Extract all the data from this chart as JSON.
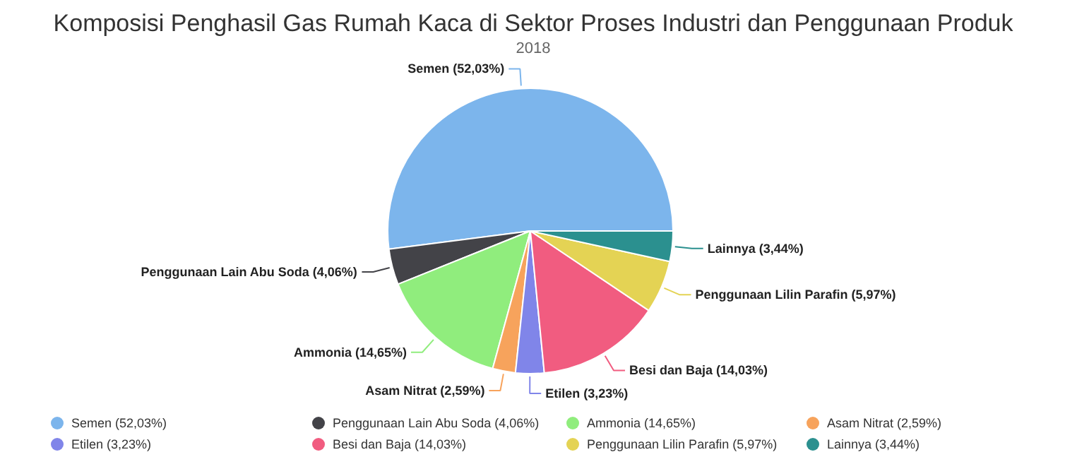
{
  "chart_data": {
    "type": "pie",
    "title": "Komposisi Penghasil Gas Rumah Kaca di Sektor Proses Industri dan Penggunaan Produk",
    "subtitle": "2018",
    "categories": [
      "Semen (52,03%)",
      "Penggunaan Lain Abu Soda (4,06%)",
      "Ammonia (14,65%)",
      "Asam Nitrat (2,59%)",
      "Etilen (3,23%)",
      "Besi dan Baja (14,03%)",
      "Penggunaan Lilin Parafin (5,97%)",
      "Lainnya (3,44%)"
    ],
    "values": [
      52.03,
      4.06,
      14.65,
      2.59,
      3.23,
      14.03,
      5.97,
      3.44
    ],
    "colors": [
      "#7cb5ec",
      "#434348",
      "#90ed7d",
      "#f7a35c",
      "#8085e9",
      "#f15c80",
      "#e4d354",
      "#2b908f"
    ],
    "legend": "bottom"
  }
}
